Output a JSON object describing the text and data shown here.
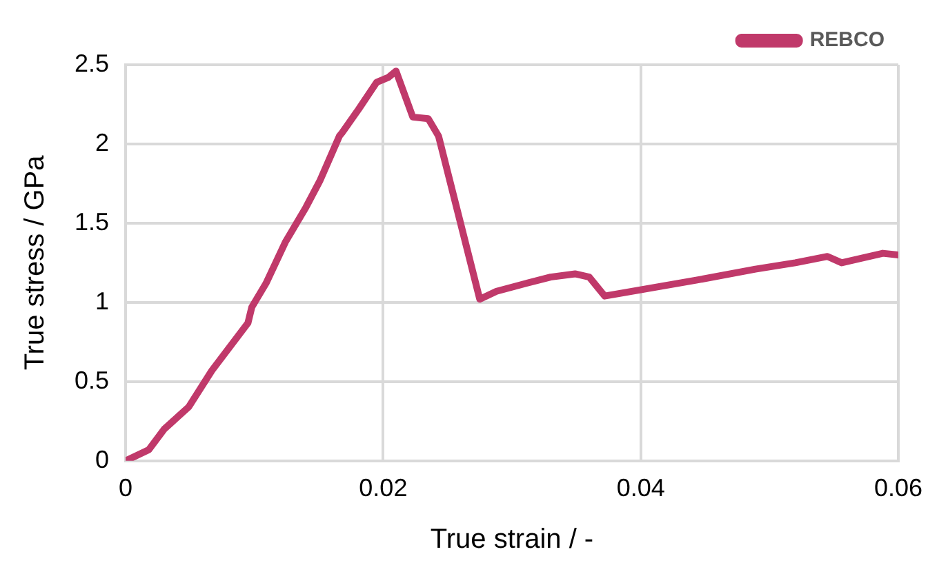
{
  "chart_data": {
    "type": "line",
    "xlabel": "True strain / -",
    "ylabel": "True stress / GPa",
    "xlim": [
      0,
      0.06
    ],
    "xticks": [
      0,
      0.02,
      0.04,
      0.06
    ],
    "ylim": [
      0,
      2.5
    ],
    "yticks": [
      0,
      0.5,
      1,
      1.5,
      2,
      2.5
    ],
    "grid": true,
    "legend": "top right",
    "marker": "none",
    "line_style": "solid",
    "series": [
      {
        "name": "REBCO",
        "color": "#c0396a",
        "x": [
          0,
          0.0018,
          0.003,
          0.0049,
          0.0067,
          0.0095,
          0.0098,
          0.0109,
          0.0124,
          0.014,
          0.0151,
          0.0166,
          0.0168,
          0.0181,
          0.0195,
          0.0204,
          0.021,
          0.0223,
          0.0235,
          0.0243,
          0.0275,
          0.0288,
          0.0311,
          0.033,
          0.0349,
          0.036,
          0.0372,
          0.0386,
          0.0443,
          0.0489,
          0.052,
          0.0545,
          0.0556,
          0.0588,
          0.06
        ],
        "values": [
          0,
          0.07,
          0.2,
          0.34,
          0.57,
          0.87,
          0.97,
          1.12,
          1.38,
          1.6,
          1.77,
          2.05,
          2.07,
          2.22,
          2.39,
          2.42,
          2.46,
          2.17,
          2.16,
          2.05,
          1.02,
          1.07,
          1.12,
          1.16,
          1.18,
          1.16,
          1.04,
          1.06,
          1.14,
          1.21,
          1.25,
          1.29,
          1.25,
          1.31,
          1.3
        ]
      }
    ]
  }
}
